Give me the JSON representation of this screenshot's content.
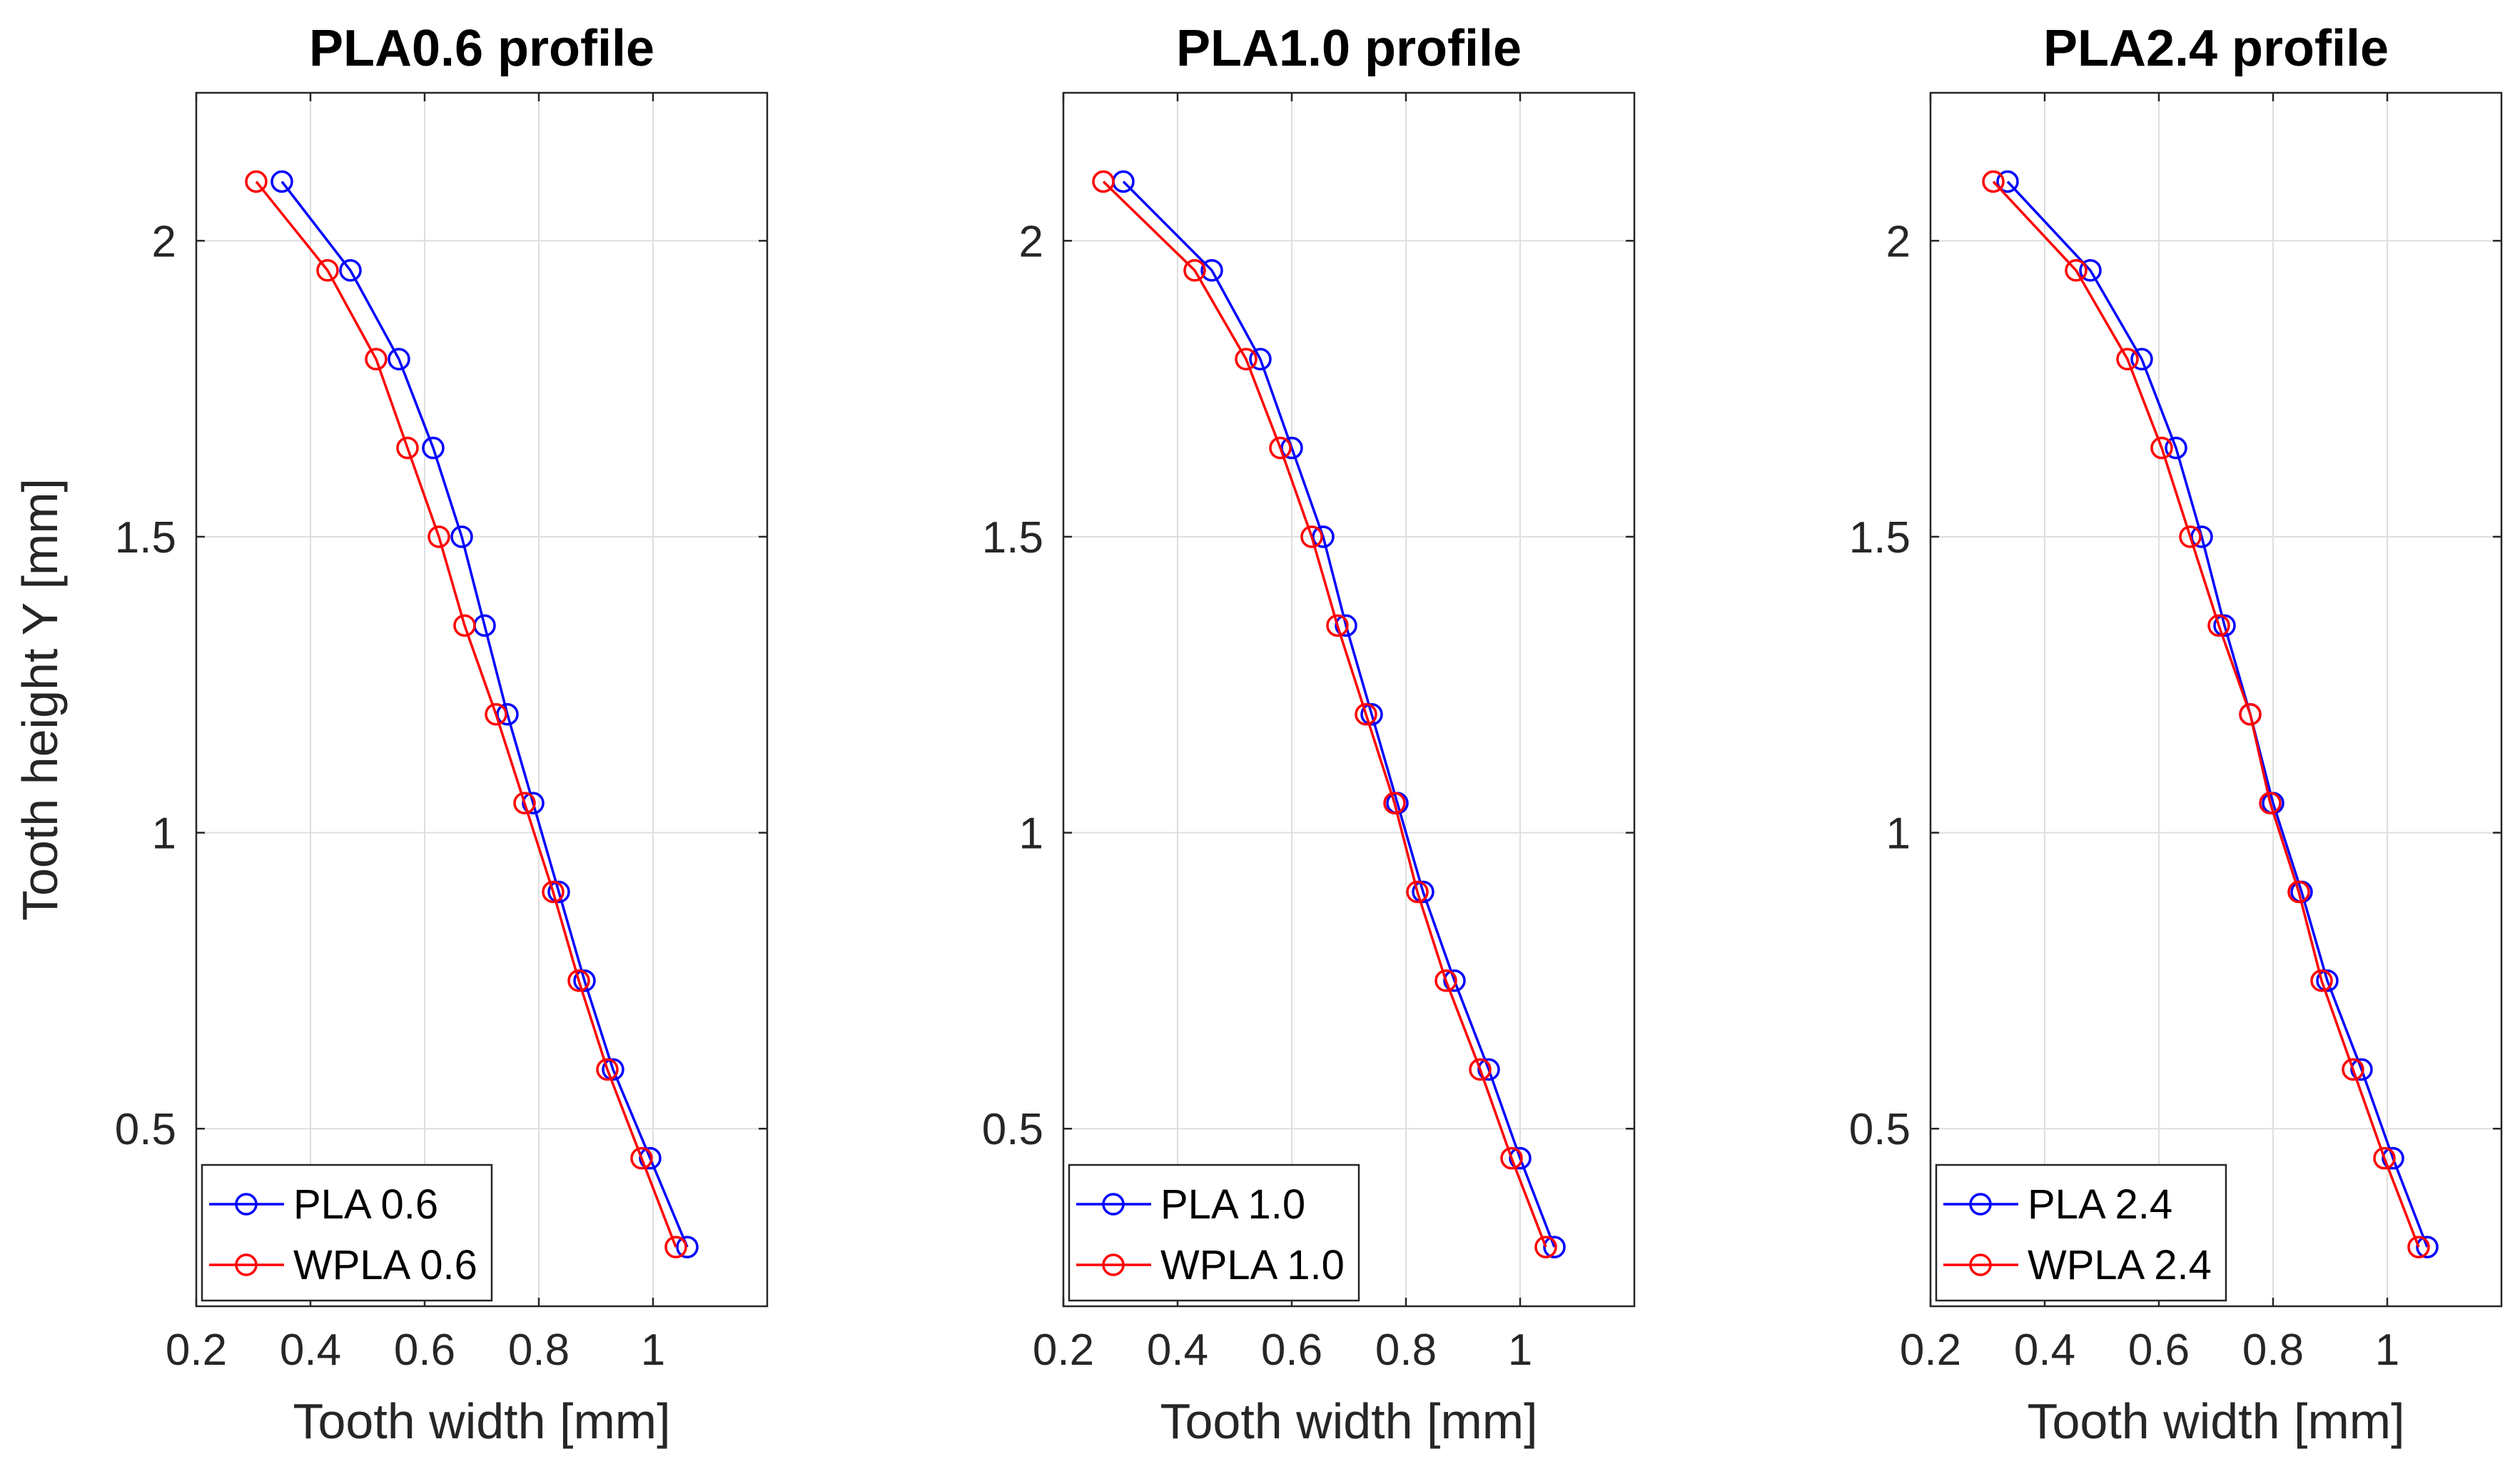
{
  "chart_data": [
    {
      "type": "line",
      "title": "PLA0.6 profile",
      "xlabel": "Tooth width [mm]",
      "ylabel": "Tooth height Y [mm]",
      "xlim": [
        0.2,
        1.2
      ],
      "ylim": [
        0.2,
        2.25
      ],
      "xticks": [
        0.2,
        0.4,
        0.6,
        0.8,
        1
      ],
      "xtick_labels": [
        "0.2",
        "0.4",
        "0.6",
        "0.8",
        "1"
      ],
      "yticks": [
        0.5,
        1,
        1.5,
        2
      ],
      "ytick_labels": [
        "0.5",
        "1",
        "1.5",
        "2"
      ],
      "grid": true,
      "legend_position": "bottom-left",
      "series": [
        {
          "name": "PLA 0.6",
          "color": "#0000ff",
          "x": [
            0.35,
            0.47,
            0.555,
            0.615,
            0.665,
            0.705,
            0.745,
            0.79,
            0.835,
            0.88,
            0.93,
            0.995,
            1.06
          ],
          "y": [
            2.1,
            1.95,
            1.8,
            1.65,
            1.5,
            1.35,
            1.2,
            1.05,
            0.9,
            0.75,
            0.6,
            0.45,
            0.3
          ]
        },
        {
          "name": "WPLA 0.6",
          "color": "#ff0000",
          "x": [
            0.305,
            0.43,
            0.515,
            0.57,
            0.625,
            0.67,
            0.725,
            0.775,
            0.825,
            0.87,
            0.92,
            0.98,
            1.04
          ],
          "y": [
            2.1,
            1.95,
            1.8,
            1.65,
            1.5,
            1.35,
            1.2,
            1.05,
            0.9,
            0.75,
            0.6,
            0.45,
            0.3
          ]
        }
      ]
    },
    {
      "type": "line",
      "title": "PLA1.0 profile",
      "xlabel": "Tooth width [mm]",
      "ylabel": "",
      "xlim": [
        0.2,
        1.2
      ],
      "ylim": [
        0.2,
        2.25
      ],
      "xticks": [
        0.2,
        0.4,
        0.6,
        0.8,
        1
      ],
      "xtick_labels": [
        "0.2",
        "0.4",
        "0.6",
        "0.8",
        "1"
      ],
      "yticks": [
        0.5,
        1,
        1.5,
        2
      ],
      "ytick_labels": [
        "0.5",
        "1",
        "1.5",
        "2"
      ],
      "grid": true,
      "legend_position": "bottom-left",
      "series": [
        {
          "name": "PLA 1.0",
          "color": "#0000ff",
          "x": [
            0.305,
            0.46,
            0.545,
            0.6,
            0.655,
            0.695,
            0.74,
            0.785,
            0.83,
            0.885,
            0.945,
            1.0,
            1.06
          ],
          "y": [
            2.1,
            1.95,
            1.8,
            1.65,
            1.5,
            1.35,
            1.2,
            1.05,
            0.9,
            0.75,
            0.6,
            0.45,
            0.3
          ]
        },
        {
          "name": "WPLA 1.0",
          "color": "#ff0000",
          "x": [
            0.27,
            0.43,
            0.52,
            0.58,
            0.635,
            0.68,
            0.73,
            0.78,
            0.82,
            0.87,
            0.93,
            0.985,
            1.045
          ],
          "y": [
            2.1,
            1.95,
            1.8,
            1.65,
            1.5,
            1.35,
            1.2,
            1.05,
            0.9,
            0.75,
            0.6,
            0.45,
            0.3
          ]
        }
      ]
    },
    {
      "type": "line",
      "title": "PLA2.4 profile",
      "xlabel": "Tooth width [mm]",
      "ylabel": "",
      "xlim": [
        0.2,
        1.2
      ],
      "ylim": [
        0.2,
        2.25
      ],
      "xticks": [
        0.2,
        0.4,
        0.6,
        0.8,
        1
      ],
      "xtick_labels": [
        "0.2",
        "0.4",
        "0.6",
        "0.8",
        "1"
      ],
      "yticks": [
        0.5,
        1,
        1.5,
        2
      ],
      "ytick_labels": [
        "0.5",
        "1",
        "1.5",
        "2"
      ],
      "grid": true,
      "legend_position": "bottom-left",
      "series": [
        {
          "name": "PLA 2.4",
          "color": "#0000ff",
          "x": [
            0.335,
            0.48,
            0.57,
            0.63,
            0.675,
            0.715,
            0.76,
            0.8,
            0.85,
            0.895,
            0.955,
            1.01,
            1.07
          ],
          "y": [
            2.1,
            1.95,
            1.8,
            1.65,
            1.5,
            1.35,
            1.2,
            1.05,
            0.9,
            0.75,
            0.6,
            0.45,
            0.3
          ]
        },
        {
          "name": "WPLA 2.4",
          "color": "#ff0000",
          "x": [
            0.31,
            0.455,
            0.545,
            0.605,
            0.655,
            0.705,
            0.76,
            0.795,
            0.845,
            0.885,
            0.94,
            0.995,
            1.055
          ],
          "y": [
            2.1,
            1.95,
            1.8,
            1.65,
            1.5,
            1.35,
            1.2,
            1.05,
            0.9,
            0.75,
            0.6,
            0.45,
            0.3
          ]
        }
      ]
    }
  ]
}
